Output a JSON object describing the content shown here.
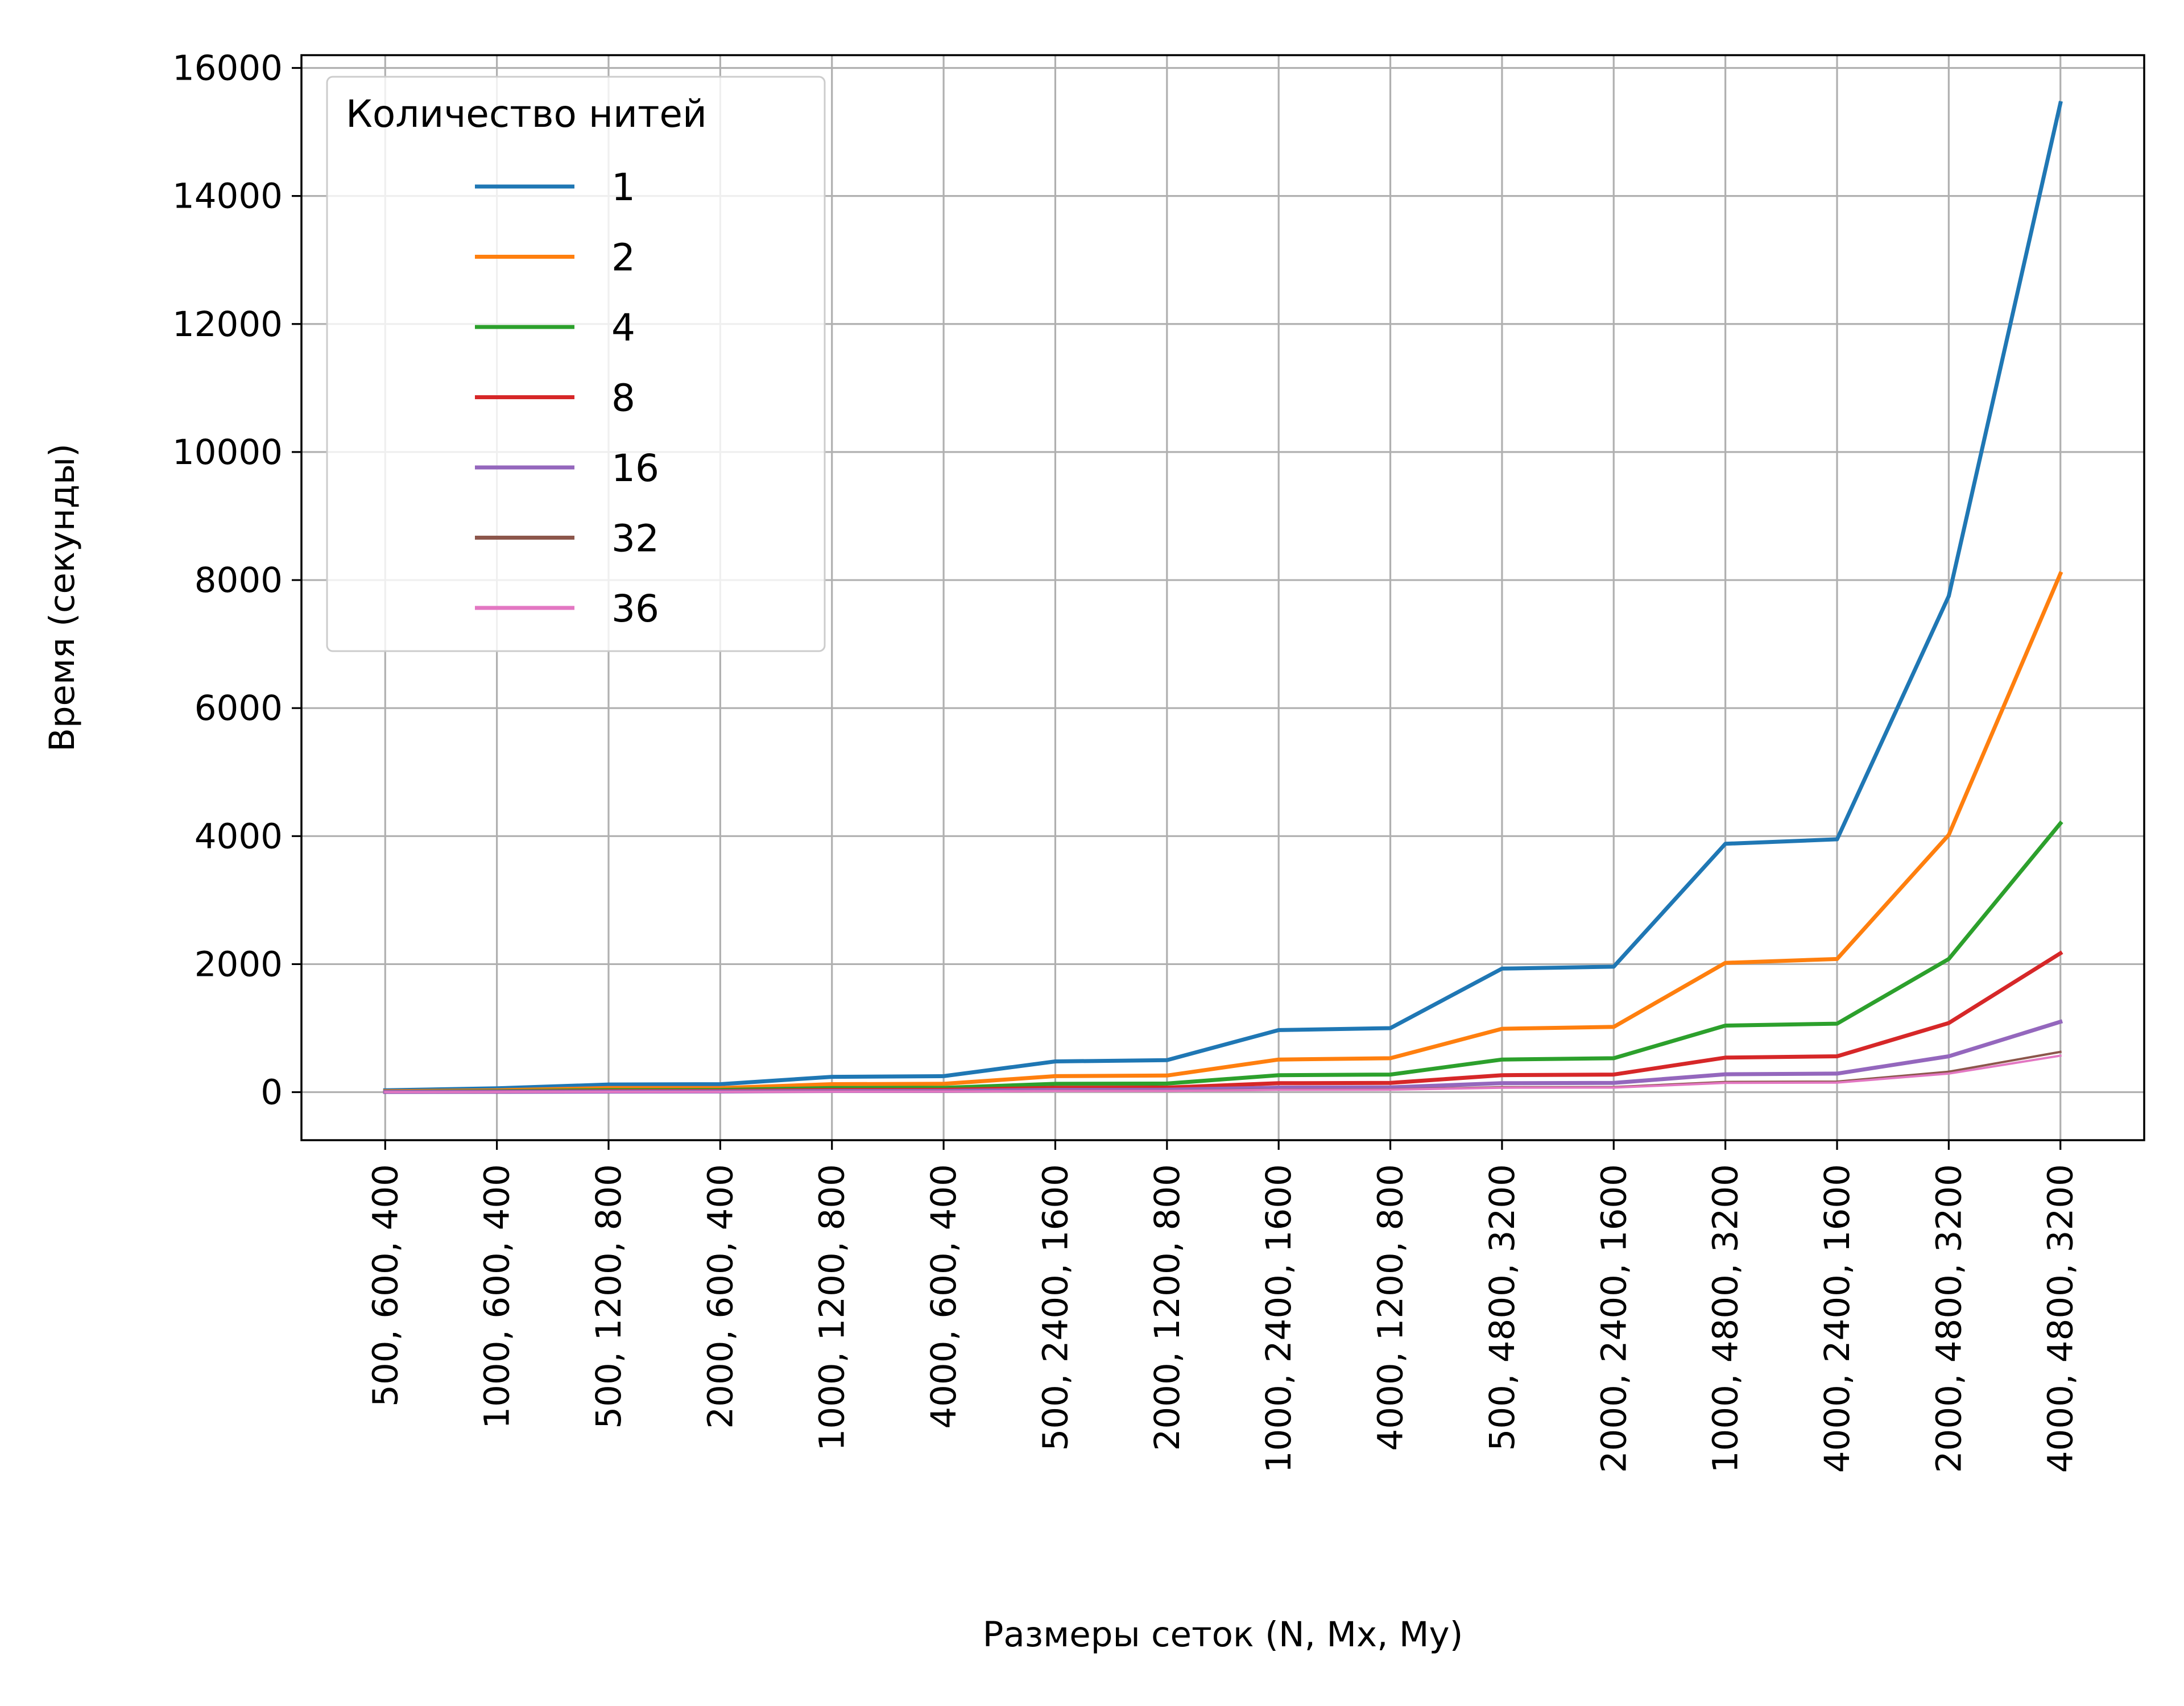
{
  "chart_data": {
    "type": "line",
    "title": "",
    "xlabel": "Размеры сеток (N, Mx, My)",
    "ylabel": "Время (секунды)",
    "categories": [
      "500,  600,  400",
      "1000,  600,  400",
      "500, 1200,  800",
      "2000,  600,  400",
      "1000, 1200,  800",
      "4000,  600,  400",
      "500, 2400, 1600",
      "2000, 1200,  800",
      "1000, 2400, 1600",
      "4000, 1200,  800",
      "500, 4800, 3200",
      "2000, 2400, 1600",
      "1000, 4800, 3200",
      "4000, 2400, 1600",
      "2000, 4800, 3200",
      "4000, 4800, 3200"
    ],
    "ylim": [
      -750,
      16200
    ],
    "yticks": [
      0,
      2000,
      4000,
      6000,
      8000,
      10000,
      12000,
      14000,
      16000
    ],
    "grid": true,
    "legend": {
      "title": "Количество нитей",
      "placement": "upper-left"
    },
    "series": [
      {
        "name": "1",
        "color": "#1f77b4",
        "values": [
          30,
          60,
          120,
          125,
          240,
          250,
          480,
          500,
          970,
          1000,
          1930,
          1960,
          3880,
          3950,
          7750,
          15450
        ]
      },
      {
        "name": "2",
        "color": "#ff7f0e",
        "values": [
          15,
          30,
          65,
          65,
          125,
          130,
          250,
          260,
          510,
          530,
          990,
          1020,
          2020,
          2080,
          4020,
          8100
        ]
      },
      {
        "name": "4",
        "color": "#2ca02c",
        "values": [
          8,
          16,
          33,
          34,
          65,
          68,
          130,
          135,
          265,
          275,
          510,
          530,
          1040,
          1070,
          2080,
          4200
        ]
      },
      {
        "name": "8",
        "color": "#d62728",
        "values": [
          5,
          9,
          17,
          18,
          34,
          36,
          68,
          72,
          140,
          145,
          265,
          275,
          540,
          560,
          1080,
          2170
        ]
      },
      {
        "name": "16",
        "color": "#9467bd",
        "values": [
          3,
          5,
          9,
          10,
          18,
          19,
          36,
          38,
          72,
          75,
          140,
          145,
          280,
          290,
          560,
          1100
        ]
      },
      {
        "name": "32",
        "color": "#8c564b",
        "values": [
          2,
          3,
          5,
          6,
          10,
          11,
          20,
          21,
          40,
          42,
          78,
          80,
          160,
          165,
          320,
          630
        ]
      },
      {
        "name": "36",
        "color": "#e377c2",
        "values": [
          2,
          3,
          5,
          5,
          9,
          10,
          18,
          19,
          36,
          38,
          70,
          72,
          145,
          150,
          290,
          570
        ]
      }
    ]
  }
}
